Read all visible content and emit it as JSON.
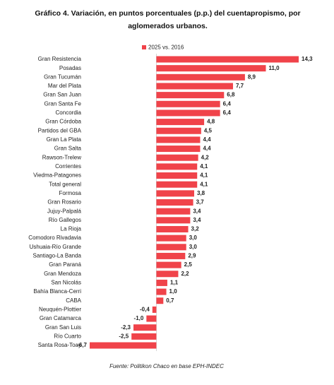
{
  "chart_data": {
    "type": "bar",
    "orientation": "horizontal",
    "title": "Gráfico 4. Variación, en puntos porcentuales (p.p.) del cuentapropismo, por aglomerados urbanos.",
    "source": "Fuente: Politikon Chaco en base EPH-INDEC",
    "categories": [
      "Gran Resistencia",
      "Posadas",
      "Gran Tucumán",
      "Mar del Plata",
      "Gran San Juan",
      "Gran Santa Fe",
      "Concordia",
      "Gran Córdoba",
      "Partidos del GBA",
      "Gran La Plata",
      "Gran Salta",
      "Rawson-Trelew",
      "Corrientes",
      "Viedma-Patagones",
      "Total general",
      "Formosa",
      "Gran Rosario",
      "Jujuy-Palpalá",
      "Río Gallegos",
      "La Rioja",
      "Comodoro Rivadavia",
      "Ushuaia-Río Grande",
      "Santiago-La Banda",
      "Gran Paraná",
      "Gran Mendoza",
      "San Nicolás",
      "Bahía Blanca-Cerri",
      "CABA",
      "Neuquén-Plottier",
      "Gran Catamarca",
      "Gran San Luis",
      "Río Cuarto",
      "Santa Rosa-Toay"
    ],
    "series": [
      {
        "name": "2025 vs. 2016",
        "color": "#f0434a",
        "values": [
          14.3,
          11.0,
          8.9,
          7.7,
          6.8,
          6.4,
          6.4,
          4.8,
          4.5,
          4.4,
          4.4,
          4.2,
          4.1,
          4.1,
          4.1,
          3.8,
          3.7,
          3.4,
          3.4,
          3.2,
          3.0,
          3.0,
          2.9,
          2.5,
          2.2,
          1.1,
          1.0,
          0.7,
          -0.4,
          -1.0,
          -2.3,
          -2.5,
          -6.7
        ],
        "value_labels": [
          "14,3",
          "11,0",
          "8,9",
          "7,7",
          "6,8",
          "6,4",
          "6,4",
          "4,8",
          "4,5",
          "4,4",
          "4,4",
          "4,2",
          "4,1",
          "4,1",
          "4,1",
          "3,8",
          "3,7",
          "3,4",
          "3,4",
          "3,2",
          "3,0",
          "3,0",
          "2,9",
          "2,5",
          "2,2",
          "1,1",
          "1,0",
          "0,7",
          "-0,4",
          "-1,0",
          "-2,3",
          "-2,5",
          "-6,7"
        ]
      }
    ],
    "legend": "top"
  }
}
